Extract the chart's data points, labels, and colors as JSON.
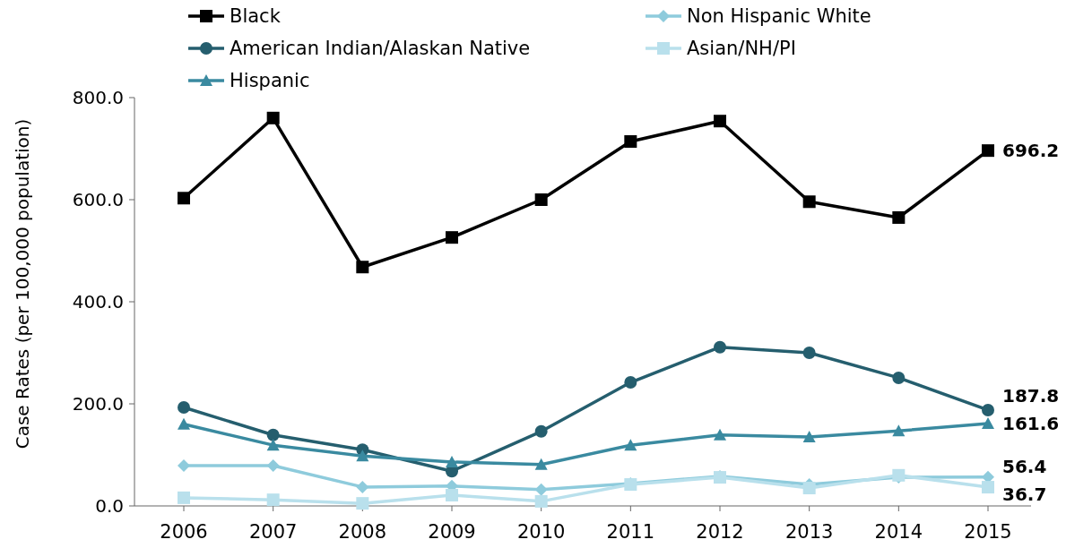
{
  "chart_data": {
    "type": "line",
    "ylabel": "Case Rates (per 100,000 population)",
    "categories": [
      "2006",
      "2007",
      "2008",
      "2009",
      "2010",
      "2011",
      "2012",
      "2013",
      "2014",
      "2015"
    ],
    "series": [
      {
        "name": "Black",
        "color": "#000000",
        "marker": "square",
        "values": [
          603,
          760,
          468,
          526,
          600,
          714,
          754,
          596,
          565,
          696.2
        ],
        "value_labels": [
          null,
          null,
          null,
          null,
          null,
          null,
          null,
          null,
          null,
          "696.2"
        ]
      },
      {
        "name": "American Indian/Alaskan Native",
        "color": "#255e6e",
        "marker": "circle",
        "values": [
          193,
          139,
          110,
          68,
          146,
          242,
          311,
          300,
          251,
          187.8
        ],
        "value_labels": [
          null,
          null,
          null,
          null,
          null,
          null,
          null,
          null,
          null,
          "187.8"
        ]
      },
      {
        "name": "Hispanic",
        "color": "#3a8aa0",
        "marker": "triangle",
        "values": [
          160,
          119,
          98,
          86,
          81,
          119,
          139,
          135,
          147,
          161.6
        ],
        "value_labels": [
          null,
          null,
          null,
          null,
          null,
          null,
          null,
          null,
          null,
          "161.6"
        ]
      },
      {
        "name": "Non Hispanic White",
        "color": "#8ecbdc",
        "marker": "diamond",
        "values": [
          79,
          79,
          37,
          39,
          32,
          44,
          58,
          42,
          56,
          56.4
        ],
        "value_labels": [
          null,
          null,
          null,
          null,
          null,
          null,
          null,
          null,
          null,
          "56.4"
        ]
      },
      {
        "name": "Asian/NH/PI",
        "color": "#b9e0ec",
        "marker": "square",
        "values": [
          16,
          12,
          5,
          21,
          9,
          42,
          56,
          35,
          60,
          36.7
        ],
        "value_labels": [
          null,
          null,
          null,
          null,
          null,
          null,
          null,
          null,
          null,
          "36.7"
        ]
      }
    ],
    "ylim": [
      0,
      800
    ],
    "yticks": [
      {
        "value": 0,
        "label": "0.0"
      },
      {
        "value": 200,
        "label": "200.0"
      },
      {
        "value": 400,
        "label": "400.0"
      },
      {
        "value": 600,
        "label": "600.0"
      },
      {
        "value": 800,
        "label": "800.0"
      }
    ],
    "grid": false,
    "legend": "top",
    "line_style": "solid"
  }
}
